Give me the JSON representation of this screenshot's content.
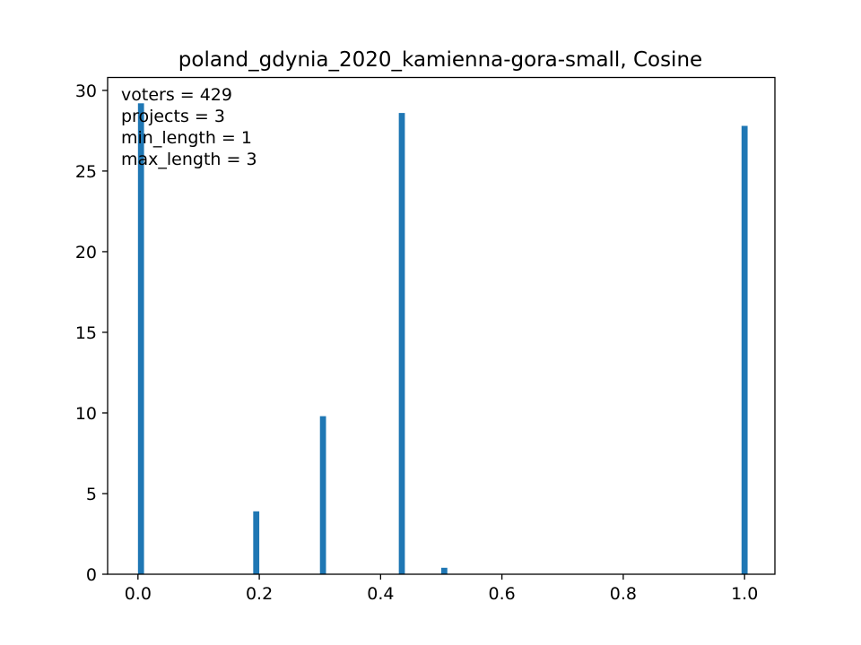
{
  "chart_data": {
    "type": "bar",
    "title": "poland_gdynia_2020_kamienna-gora-small, Cosine",
    "xlabel": "",
    "ylabel": "",
    "xlim": [
      -0.05,
      1.05
    ],
    "ylim": [
      0,
      30.8
    ],
    "x_ticks": [
      0.0,
      0.2,
      0.4,
      0.6,
      0.8,
      1.0
    ],
    "x_tick_labels": [
      "0.0",
      "0.2",
      "0.4",
      "0.6",
      "0.8",
      "1.0"
    ],
    "y_ticks": [
      0,
      5,
      10,
      15,
      20,
      25,
      30
    ],
    "y_tick_labels": [
      "0",
      "5",
      "10",
      "15",
      "20",
      "25",
      "30"
    ],
    "bar_width": 0.01,
    "bar_color": "#1f77b4",
    "grid": false,
    "x": [
      0.005,
      0.195,
      0.305,
      0.435,
      0.505,
      1.0
    ],
    "values": [
      29.2,
      3.9,
      9.8,
      28.6,
      0.4,
      27.8
    ],
    "annotations": [
      "voters = 429",
      "projects = 3",
      "min_length = 1",
      "max_length = 3"
    ]
  }
}
